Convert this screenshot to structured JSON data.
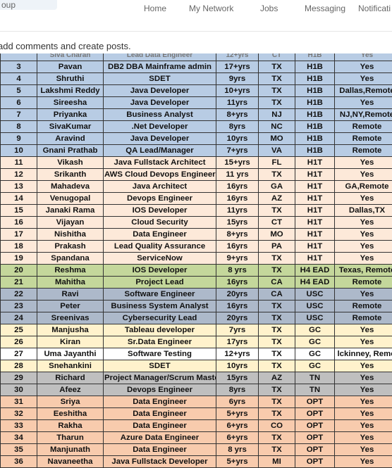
{
  "header": {
    "search_fragment": "oup",
    "nav": {
      "home": "Home",
      "network": "My Network",
      "jobs": "Jobs",
      "messaging": "Messaging",
      "notifications": "Notificati"
    }
  },
  "notice": "add comments and create posts.",
  "colors": {
    "blue": "#b8cce4",
    "peach": "#fde9d9",
    "green": "#c4d79b",
    "slate": "#adb9ca",
    "yellow": "#fff2cc",
    "gray": "#bfbfbf",
    "orange": "#f8cbad",
    "white": "#ffffff"
  },
  "table": {
    "partial_row": [
      "",
      "Siva Charan",
      "Lead Data Engineer",
      "12+yrs",
      "CT",
      "H1B",
      "Yes"
    ],
    "rows": [
      {
        "no": "3",
        "name": "Pavan",
        "role": "DB2 DBA Mainframe admin",
        "exp": "17+yrs",
        "state": "TX",
        "visa": "H1B",
        "loc": "Yes",
        "color": "blue"
      },
      {
        "no": "4",
        "name": "Shruthi",
        "role": "SDET",
        "exp": "9yrs",
        "state": "TX",
        "visa": "H1B",
        "loc": "Yes",
        "color": "blue"
      },
      {
        "no": "5",
        "name": "Lakshmi Reddy",
        "role": "Java Developer",
        "exp": "10+yrs",
        "state": "TX",
        "visa": "H1B",
        "loc": "Dallas,Remote",
        "color": "blue"
      },
      {
        "no": "6",
        "name": "Sireesha",
        "role": "Java Developer",
        "exp": "11yrs",
        "state": "TX",
        "visa": "H1B",
        "loc": "Yes",
        "color": "blue"
      },
      {
        "no": "7",
        "name": "Priyanka",
        "role": "Business Analyst",
        "exp": "8+yrs",
        "state": "NJ",
        "visa": "H1B",
        "loc": "NJ,NY,Remote",
        "color": "blue"
      },
      {
        "no": "8",
        "name": "SivaKumar",
        "role": ".Net Developer",
        "exp": "8yrs",
        "state": "NC",
        "visa": "H1B",
        "loc": "Remote",
        "color": "blue"
      },
      {
        "no": "9",
        "name": "Aravind",
        "role": "Java Developer",
        "exp": "10yrs",
        "state": "MO",
        "visa": "H1B",
        "loc": "Remote",
        "color": "blue"
      },
      {
        "no": "10",
        "name": "Gnani Prathab",
        "role": "QA Lead/Manager",
        "exp": "7+yrs",
        "state": "VA",
        "visa": "H1B",
        "loc": "Remote",
        "color": "blue"
      },
      {
        "no": "11",
        "name": "Vikash",
        "role": "Java Fullstack Architect",
        "exp": "15+yrs",
        "state": "FL",
        "visa": "H1T",
        "loc": "Yes",
        "color": "peach"
      },
      {
        "no": "12",
        "name": "Srikanth",
        "role": "AWS Cloud Devops Engineer",
        "exp": "11 yrs",
        "state": "TX",
        "visa": "H1T",
        "loc": "Yes",
        "color": "peach"
      },
      {
        "no": "13",
        "name": "Mahadeva",
        "role": "Java Architect",
        "exp": "16yrs",
        "state": "GA",
        "visa": "H1T",
        "loc": "GA,Remote",
        "color": "peach"
      },
      {
        "no": "14",
        "name": "Venugopal",
        "role": "Devops Engineer",
        "exp": "16yrs",
        "state": "AZ",
        "visa": "H1T",
        "loc": "Yes",
        "color": "peach"
      },
      {
        "no": "15",
        "name": "Janaki Rama",
        "role": "IOS Developer",
        "exp": "11yrs",
        "state": "TX",
        "visa": "H1T",
        "loc": "Dallas,TX",
        "color": "peach"
      },
      {
        "no": "16",
        "name": "Vijayan",
        "role": "Cloud Security",
        "exp": "15yrs",
        "state": "CT",
        "visa": "H1T",
        "loc": "Yes",
        "color": "peach"
      },
      {
        "no": "17",
        "name": "Nishitha",
        "role": "Data Engineer",
        "exp": "8+yrs",
        "state": "MO",
        "visa": "H1T",
        "loc": "Yes",
        "color": "peach"
      },
      {
        "no": "18",
        "name": "Prakash",
        "role": "Lead Quality Assurance",
        "exp": "16yrs",
        "state": "PA",
        "visa": "H1T",
        "loc": "Yes",
        "color": "peach"
      },
      {
        "no": "19",
        "name": "Spandana",
        "role": "ServiceNow",
        "exp": "9+yrs",
        "state": "TX",
        "visa": "H1T",
        "loc": "Yes",
        "color": "peach"
      },
      {
        "no": "20",
        "name": "Reshma",
        "role": "IOS Developer",
        "exp": "8 yrs",
        "state": "TX",
        "visa": "H4 EAD",
        "loc": "Texas, Remote",
        "color": "green"
      },
      {
        "no": "21",
        "name": "Mahitha",
        "role": "Project Lead",
        "exp": "16yrs",
        "state": "CA",
        "visa": "H4 EAD",
        "loc": "Remote",
        "color": "green"
      },
      {
        "no": "22",
        "name": "Ravi",
        "role": "Software Engineer",
        "exp": "20yrs",
        "state": "CA",
        "visa": "USC",
        "loc": "Yes",
        "color": "slate"
      },
      {
        "no": "23",
        "name": "Peter",
        "role": "Business System Analyst",
        "exp": "16yrs",
        "state": "TX",
        "visa": "USC",
        "loc": "Remote",
        "color": "slate"
      },
      {
        "no": "24",
        "name": "Sreenivas",
        "role": "Cybersecurity Lead",
        "exp": "20yrs",
        "state": "TX",
        "visa": "USC",
        "loc": "Remote",
        "color": "slate"
      },
      {
        "no": "25",
        "name": "Manjusha",
        "role": "Tableau developer",
        "exp": "7yrs",
        "state": "TX",
        "visa": "GC",
        "loc": "Yes",
        "color": "yellow"
      },
      {
        "no": "26",
        "name": "Kiran",
        "role": "Sr.Data Engineer",
        "exp": "17yrs",
        "state": "TX",
        "visa": "GC",
        "loc": "Yes",
        "color": "yellow"
      },
      {
        "no": "27",
        "name": "Uma Jayanthi",
        "role": "Software Testing",
        "exp": "12+yrs",
        "state": "TX",
        "visa": "GC",
        "loc": "lckinney, Remot",
        "color": "white"
      },
      {
        "no": "28",
        "name": "Snehankini",
        "role": "SDET",
        "exp": "10yrs",
        "state": "TX",
        "visa": "GC",
        "loc": "Yes",
        "color": "yellow"
      },
      {
        "no": "29",
        "name": "Richard",
        "role": "Project Manager/Scrum Maste",
        "exp": "15yrs",
        "state": "AZ",
        "visa": "TN",
        "loc": "Yes",
        "color": "gray"
      },
      {
        "no": "30",
        "name": "Afeez",
        "role": "Devops Engineer",
        "exp": "8yrs",
        "state": "TX",
        "visa": "TN",
        "loc": "Yes",
        "color": "gray"
      },
      {
        "no": "31",
        "name": "Sriya",
        "role": "Data Engineer",
        "exp": "6yrs",
        "state": "TX",
        "visa": "OPT",
        "loc": "Yes",
        "color": "orange"
      },
      {
        "no": "32",
        "name": "Eeshitha",
        "role": "Data Engineer",
        "exp": "5+yrs",
        "state": "TX",
        "visa": "OPT",
        "loc": "Yes",
        "color": "orange"
      },
      {
        "no": "33",
        "name": "Rakha",
        "role": "Data Engineer",
        "exp": "6+yrs",
        "state": "CO",
        "visa": "OPT",
        "loc": "Yes",
        "color": "orange"
      },
      {
        "no": "34",
        "name": "Tharun",
        "role": "Azure Data Engineer",
        "exp": "6+yrs",
        "state": "TX",
        "visa": "OPT",
        "loc": "Yes",
        "color": "orange"
      },
      {
        "no": "35",
        "name": "Manjunath",
        "role": "Data Engineer",
        "exp": "8 yrs",
        "state": "TX",
        "visa": "OPT",
        "loc": "Yes",
        "color": "orange"
      },
      {
        "no": "36",
        "name": "Navaneetha",
        "role": "Java Fullstack Developer",
        "exp": "5+yrs",
        "state": "MI",
        "visa": "OPT",
        "loc": "Yes",
        "color": "orange"
      }
    ]
  }
}
